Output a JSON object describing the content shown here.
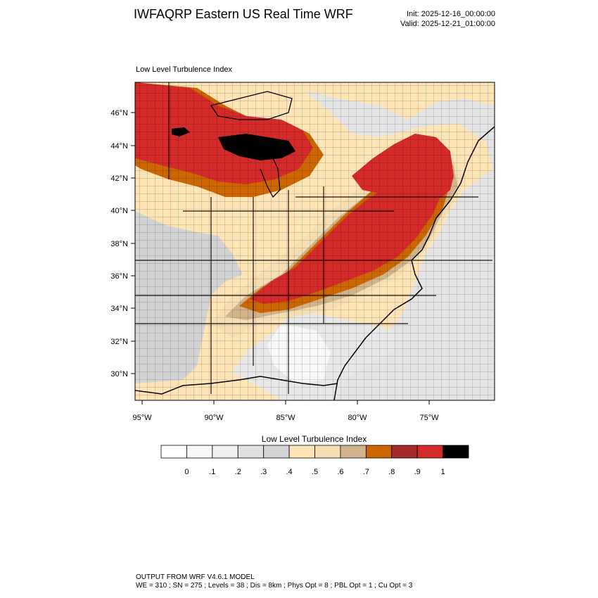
{
  "header": {
    "title": "IWFAQRP Eastern US Real Time WRF",
    "init": "Init: 2025-12-16_00:00:00",
    "valid": "Valid: 2025-12-21_01:00:00"
  },
  "map": {
    "field_label": "Low Level Turbulence Index",
    "lat_labels": [
      "46°N",
      "44°N",
      "42°N",
      "40°N",
      "38°N",
      "36°N",
      "34°N",
      "32°N",
      "30°N"
    ],
    "lon_labels": [
      "95°W",
      "90°W",
      "85°W",
      "80°W",
      "75°W"
    ],
    "fill_colors": {
      "black": "#000000",
      "red": "#d42a2a",
      "dark_red": "#a52a2a",
      "orange": "#cc6600",
      "tan": "#d2b48c",
      "wheat": "#f5deb3",
      "moccasin": "#ffe4b5",
      "gray": "#d3d3d3",
      "light_gray": "#e4e4e4",
      "white": "#ffffff"
    }
  },
  "colorbar": {
    "title": "Low Level Turbulence Index",
    "colors": [
      "#ffffff",
      "#f8f8f8",
      "#efefef",
      "#e0e0e0",
      "#d3d3d3",
      "#ffe4b5",
      "#f5deb3",
      "#d2b48c",
      "#cc6600",
      "#a52a2a",
      "#d42a2a",
      "#000000"
    ],
    "labels": [
      "0",
      ".1",
      ".2",
      ".3",
      ".4",
      ".5",
      ".6",
      ".7",
      ".8",
      ".9",
      "1"
    ]
  },
  "footer": {
    "line1": "OUTPUT FROM WRF V4.6.1 MODEL",
    "line2": "WE = 310 ; SN = 275 ; Levels = 38 ; Dis = 8km ; Phys Opt = 8 ; PBL Opt = 1 ; Cu Opt = 3"
  }
}
